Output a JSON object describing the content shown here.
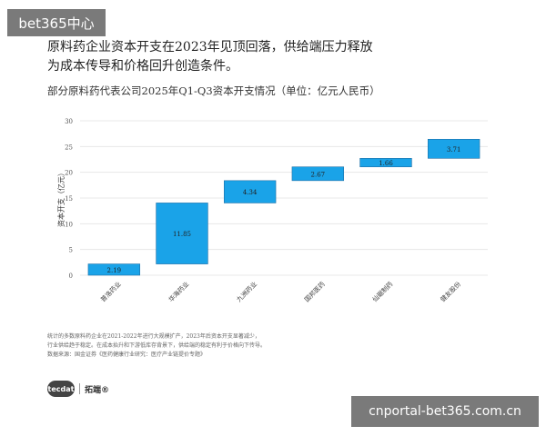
{
  "watermark_top": "bet365中心",
  "watermark_bottom": "cnportal-bet365.com.cn",
  "headline_line1": "原料药企业资本开支在2023年见顶回落，供给端压力释放",
  "headline_line2": "为成本传导和价格回升创造条件。",
  "notes": [
    "统计的多数原料药企业在2021-2022年进行大规模扩产，2023年后资本开支显著减少，",
    "行业供给趋于稳定。在成本抬升和下游低库存背景下，供给端的稳定有利于价格向下传导。",
    "数据来源：国金证券《医药健康行业研究：医疗产业链提价专题》"
  ],
  "logo": {
    "badge": "tecdat",
    "text": "拓端®"
  },
  "chart_data": {
    "type": "bar",
    "subtype": "waterfall",
    "title": "部分原料药代表公司2025年Q1-Q3资本开支情况（单位：亿元人民币）",
    "xlabel": "",
    "ylabel": "资本开支（亿元）",
    "ylim": [
      0,
      30
    ],
    "yticks": [
      0,
      5,
      10,
      15,
      20,
      25,
      30
    ],
    "grid": true,
    "categories": [
      "普洛药业",
      "华海药业",
      "九洲药业",
      "国邦医药",
      "仙琚制药",
      "健友股份"
    ],
    "values": [
      2.19,
      11.85,
      4.34,
      2.67,
      1.66,
      3.71
    ],
    "value_labels": [
      "2.19",
      "11.85",
      "4.34",
      "2.67",
      "1.66",
      "3.71"
    ],
    "bar_color": "#1aa3e8"
  }
}
